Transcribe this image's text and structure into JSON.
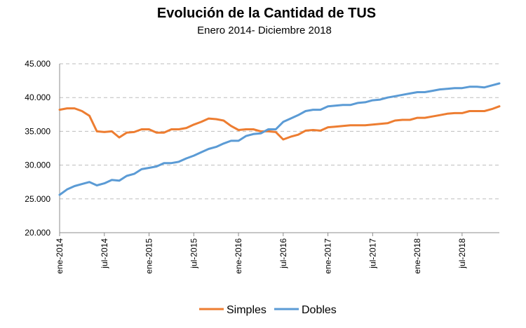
{
  "chart_data": {
    "type": "line",
    "title": "Evolución de la Cantidad de TUS",
    "subtitle": "Enero 2014- Diciembre 2018",
    "xlabel": "",
    "ylabel": "",
    "ylim": [
      20000,
      45000
    ],
    "yticks": [
      20000,
      25000,
      30000,
      35000,
      40000,
      45000
    ],
    "ytick_labels": [
      "20.000",
      "25.000",
      "30.000",
      "35.000",
      "40.000",
      "45.000"
    ],
    "x_tick_labels": [
      {
        "index": 0,
        "label": "ene-2014"
      },
      {
        "index": 6,
        "label": "jul-2014"
      },
      {
        "index": 12,
        "label": "ene-2015"
      },
      {
        "index": 18,
        "label": "jul-2015"
      },
      {
        "index": 24,
        "label": "ene-2016"
      },
      {
        "index": 30,
        "label": "jul-2016"
      },
      {
        "index": 36,
        "label": "ene-2017"
      },
      {
        "index": 42,
        "label": "jul-2017"
      },
      {
        "index": 48,
        "label": "ene-2018"
      },
      {
        "index": 54,
        "label": "jul-2018"
      }
    ],
    "n_points": 60,
    "grid": true,
    "legend_position": "bottom",
    "series": [
      {
        "name": "Simples",
        "color": "#ED7D31",
        "values": [
          38200,
          38400,
          38400,
          38000,
          37300,
          35000,
          34900,
          35000,
          34100,
          34800,
          34900,
          35300,
          35300,
          34800,
          34800,
          35300,
          35300,
          35500,
          36000,
          36400,
          36900,
          36800,
          36600,
          35800,
          35200,
          35300,
          35300,
          35000,
          35000,
          34900,
          33800,
          34200,
          34500,
          35100,
          35200,
          35100,
          35600,
          35700,
          35800,
          35900,
          35900,
          35900,
          36000,
          36100,
          36200,
          36600,
          36700,
          36700,
          37000,
          37000,
          37200,
          37400,
          37600,
          37700,
          37700,
          38000,
          38000,
          38000,
          38300,
          38700
        ]
      },
      {
        "name": "Dobles",
        "color": "#5B9BD5",
        "values": [
          25600,
          26400,
          26900,
          27200,
          27500,
          27000,
          27300,
          27800,
          27700,
          28400,
          28700,
          29400,
          29600,
          29800,
          30300,
          30300,
          30500,
          31000,
          31400,
          31900,
          32400,
          32700,
          33200,
          33600,
          33600,
          34300,
          34600,
          34700,
          35300,
          35300,
          36400,
          36900,
          37400,
          38000,
          38200,
          38200,
          38700,
          38800,
          38900,
          38900,
          39200,
          39300,
          39600,
          39700,
          40000,
          40200,
          40400,
          40600,
          40800,
          40800,
          41000,
          41200,
          41300,
          41400,
          41400,
          41600,
          41600,
          41500,
          41800,
          42100
        ]
      }
    ]
  }
}
